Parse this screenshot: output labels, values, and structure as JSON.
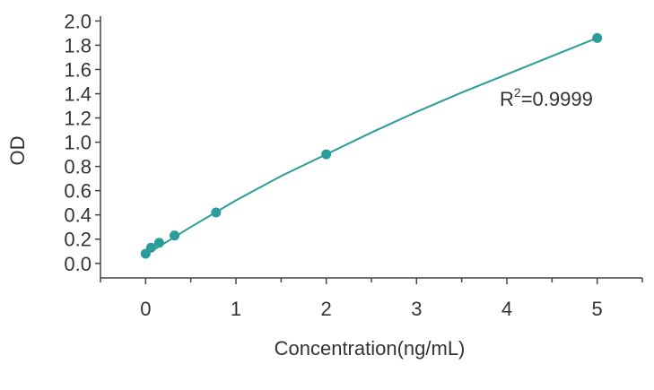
{
  "chart_data": {
    "type": "scatter",
    "x_label": "Concentration(ng/mL)",
    "y_label": "OD",
    "annotation": {
      "base": "R",
      "sup": "2",
      "rest": "=0.9999"
    },
    "series": [
      {
        "x": [
          0,
          0.06,
          0.15,
          0.32,
          0.78,
          2.0,
          5.0
        ],
        "values": [
          0.08,
          0.13,
          0.17,
          0.23,
          0.42,
          0.9,
          1.86
        ],
        "color": "#2a9d9a"
      }
    ],
    "fit": {
      "x": [
        0,
        0.5,
        1,
        1.5,
        2,
        2.5,
        3,
        3.5,
        4,
        4.5,
        5
      ],
      "values": [
        0.07,
        0.3,
        0.52,
        0.72,
        0.9,
        1.08,
        1.25,
        1.41,
        1.56,
        1.71,
        1.86
      ],
      "color": "#2a9d9a"
    },
    "xlim": [
      -0.5,
      5.5
    ],
    "ylim": [
      -0.12,
      2.04
    ],
    "xticks": [
      0,
      1,
      2,
      3,
      4,
      5
    ],
    "xminorticks": [
      -0.5,
      0.5,
      1.5,
      2.5,
      3.5,
      4.5,
      5.5
    ],
    "yticks": [
      {
        "value": 0,
        "label": "0.0"
      },
      0.2,
      0.4,
      0.6,
      0.8,
      {
        "value": 1,
        "label": "1.0"
      },
      1.2,
      1.4,
      1.6,
      1.8,
      {
        "value": 2,
        "label": "2.0"
      }
    ]
  }
}
